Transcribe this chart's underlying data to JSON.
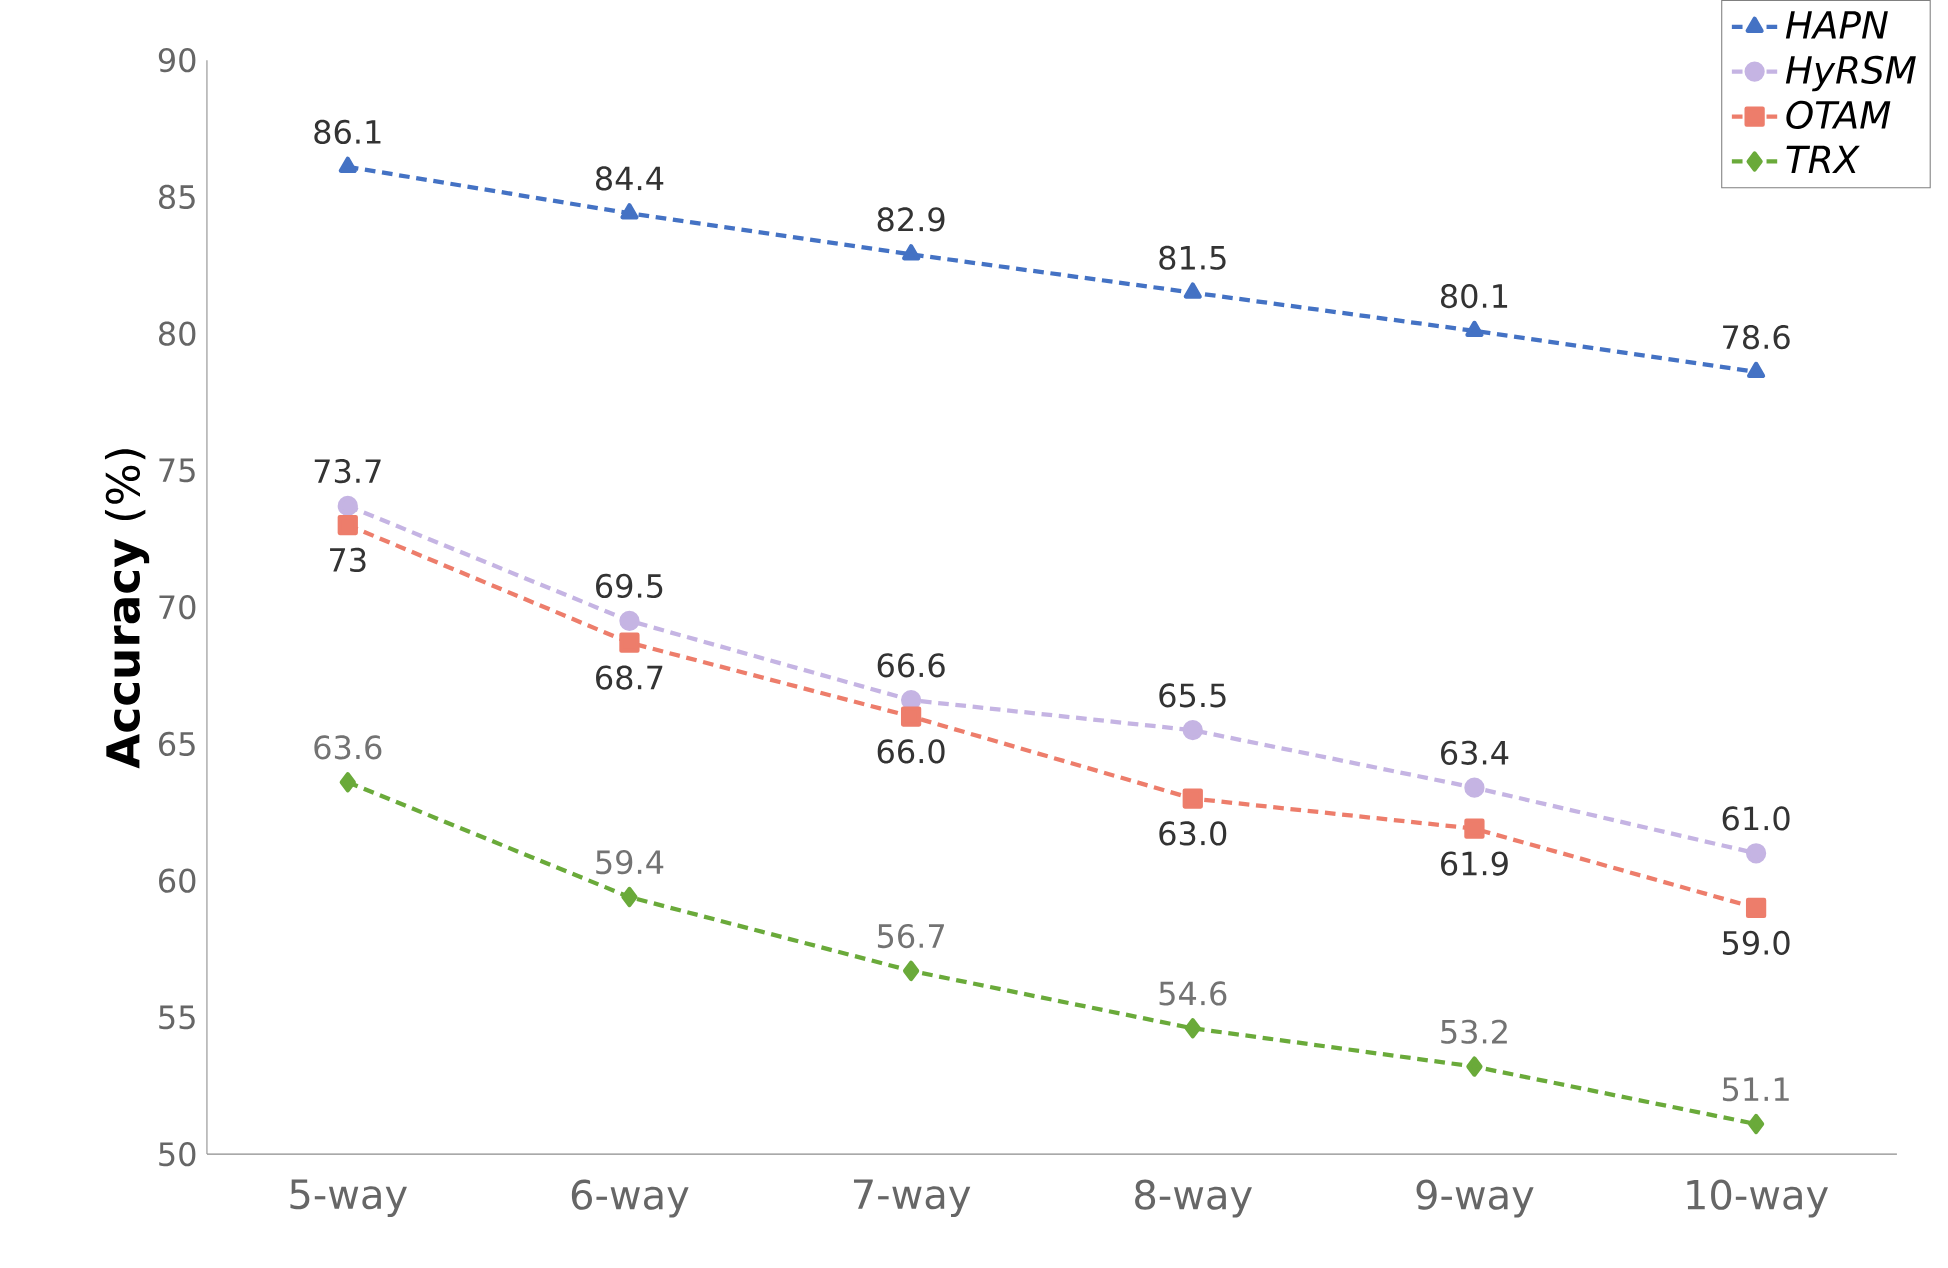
{
  "chart_data": {
    "type": "line",
    "ylabel": "**Accuracy** (%)",
    "categories": [
      "5-way",
      "6-way",
      "7-way",
      "8-way",
      "9-way",
      "10-way"
    ],
    "ylim": [
      50,
      90
    ],
    "yticks": [
      50,
      55,
      60,
      65,
      70,
      75,
      80,
      85,
      90
    ],
    "series": [
      {
        "name": "HAPN",
        "color": "#4472c4",
        "marker": "triangle",
        "values": [
          86.1,
          84.4,
          82.9,
          81.5,
          80.1,
          78.6
        ],
        "value_labels": [
          "86.1",
          "84.4",
          "82.9",
          "81.5",
          "80.1",
          "78.6"
        ]
      },
      {
        "name": "HyRSM",
        "color": "#c5b4e3",
        "marker": "circle",
        "values": [
          73.7,
          69.5,
          66.6,
          65.5,
          63.4,
          61.0
        ],
        "value_labels": [
          "73.7",
          "69.5",
          "66.6",
          "65.5",
          "63.4",
          "61.0"
        ]
      },
      {
        "name": "OTAM",
        "color": "#ed7d6b",
        "marker": "square",
        "values": [
          73,
          68.7,
          66.0,
          63.0,
          61.9,
          59.0
        ],
        "value_labels": [
          "73",
          "68.7",
          "66.0",
          "63.0",
          "61.9",
          "59.0"
        ]
      },
      {
        "name": "TRX",
        "color": "#6aaa3a",
        "marker": "diamond",
        "values": [
          63.6,
          59.4,
          56.7,
          54.6,
          53.2,
          51.1
        ],
        "value_labels": [
          "63.6",
          "59.4",
          "56.7",
          "54.6",
          "53.2",
          "51.1"
        ]
      }
    ],
    "line_style": "dashed",
    "grid": false,
    "legend": "top right"
  }
}
